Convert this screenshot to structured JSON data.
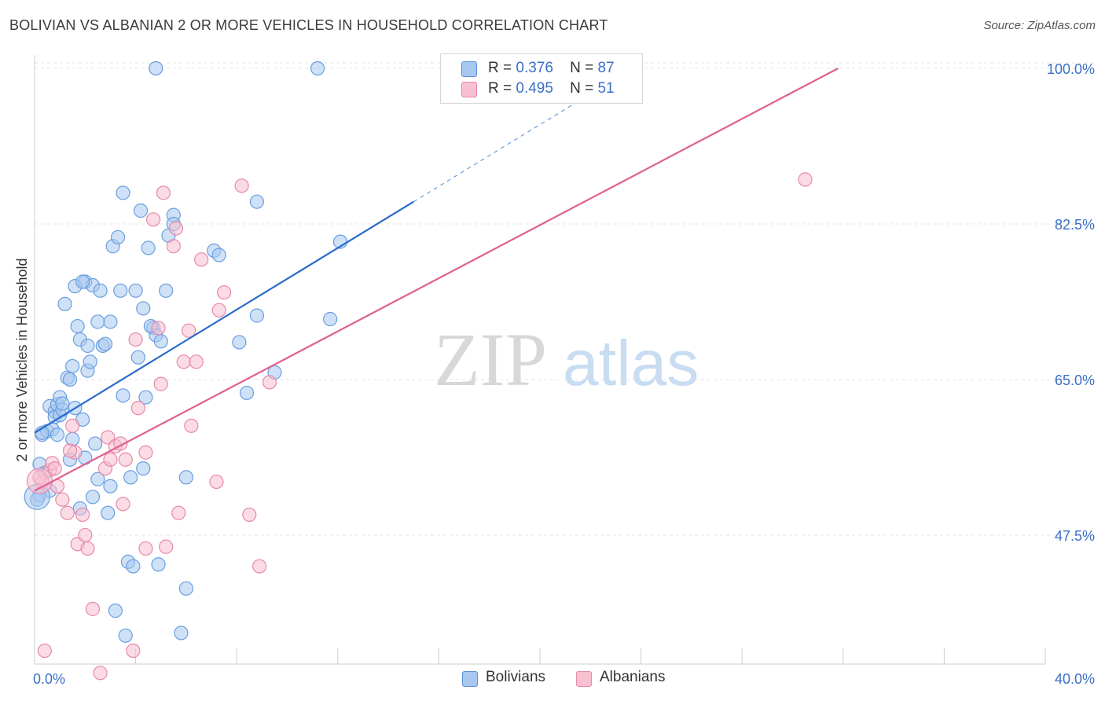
{
  "title": "BOLIVIAN VS ALBANIAN 2 OR MORE VEHICLES IN HOUSEHOLD CORRELATION CHART",
  "source": "Source: ZipAtlas.com",
  "watermark": {
    "zip": "ZIP",
    "atlas": "atlas"
  },
  "legend": {
    "r_label": "R =",
    "n_label": "N =",
    "rows": [
      {
        "r": "0.376",
        "n": "87",
        "color": "#a8c8f0",
        "border": "#5a8fd8"
      },
      {
        "r": "0.495",
        "n": "51",
        "color": "#f8c0d0",
        "border": "#e888a8"
      }
    ]
  },
  "bottom_legend": [
    {
      "label": "Bolivians",
      "color": "#a8c8f0",
      "border": "#5a8fd8"
    },
    {
      "label": "Albanians",
      "color": "#f8c0d0",
      "border": "#e888a8"
    }
  ],
  "chart_data": {
    "type": "scatter",
    "title": "BOLIVIAN VS ALBANIAN 2 OR MORE VEHICLES IN HOUSEHOLD CORRELATION CHART",
    "xlabel": "",
    "ylabel": "2 or more Vehicles in Household",
    "xlim": [
      0,
      40
    ],
    "ylim": [
      33,
      101.5
    ],
    "x_tick_labels": [
      "0.0%",
      "40.0%"
    ],
    "y_ticks": [
      47.5,
      65.0,
      82.5,
      100.0
    ],
    "y_tick_labels": [
      "47.5%",
      "65.0%",
      "82.5%",
      "100.0%"
    ],
    "grid": true,
    "legend_position": "top-center",
    "series": [
      {
        "name": "Bolivians",
        "color": "#6a9ee0",
        "fill": "#a8c8f0",
        "trend": {
          "x0": 0,
          "y0": 59.0,
          "x1": 15.0,
          "y1": 85.0,
          "dash_to_x": 22.5,
          "dash_to_y": 98.0,
          "color": "#2a6ccc"
        },
        "points": [
          [
            0.2,
            55.5
          ],
          [
            0.2,
            52.0
          ],
          [
            0.3,
            58.8
          ],
          [
            0.4,
            54.5
          ],
          [
            0.5,
            59.2
          ],
          [
            0.6,
            52.5
          ],
          [
            0.6,
            62.0
          ],
          [
            0.7,
            59.4
          ],
          [
            0.8,
            61.4
          ],
          [
            0.8,
            60.8
          ],
          [
            0.9,
            58.8
          ],
          [
            0.9,
            62.2
          ],
          [
            1.0,
            61.0
          ],
          [
            1.0,
            63.0
          ],
          [
            1.1,
            61.6
          ],
          [
            1.2,
            73.5
          ],
          [
            1.3,
            65.2
          ],
          [
            1.4,
            65.0
          ],
          [
            1.4,
            56.0
          ],
          [
            1.5,
            58.3
          ],
          [
            1.5,
            66.5
          ],
          [
            1.6,
            61.8
          ],
          [
            1.6,
            75.5
          ],
          [
            1.7,
            71.0
          ],
          [
            1.8,
            69.5
          ],
          [
            1.8,
            50.5
          ],
          [
            1.9,
            60.5
          ],
          [
            2.0,
            56.2
          ],
          [
            2.0,
            76.0
          ],
          [
            2.1,
            66.0
          ],
          [
            2.2,
            67.0
          ],
          [
            2.3,
            75.6
          ],
          [
            2.3,
            51.8
          ],
          [
            2.4,
            57.8
          ],
          [
            2.5,
            53.8
          ],
          [
            2.5,
            71.5
          ],
          [
            2.6,
            75.0
          ],
          [
            2.7,
            68.8
          ],
          [
            2.8,
            69.0
          ],
          [
            2.9,
            50.0
          ],
          [
            3.0,
            53.0
          ],
          [
            3.0,
            71.5
          ],
          [
            3.1,
            80.0
          ],
          [
            3.2,
            39.0
          ],
          [
            3.3,
            81.0
          ],
          [
            3.4,
            75.0
          ],
          [
            3.5,
            63.2
          ],
          [
            3.5,
            86.0
          ],
          [
            3.6,
            36.2
          ],
          [
            3.7,
            44.5
          ],
          [
            3.8,
            54.0
          ],
          [
            3.9,
            44.0
          ],
          [
            4.0,
            75.0
          ],
          [
            4.1,
            67.5
          ],
          [
            4.2,
            84.0
          ],
          [
            4.3,
            55.0
          ],
          [
            4.3,
            73.0
          ],
          [
            4.4,
            63.0
          ],
          [
            4.5,
            79.8
          ],
          [
            4.7,
            70.8
          ],
          [
            4.8,
            100.0
          ],
          [
            4.8,
            70.0
          ],
          [
            4.9,
            44.2
          ],
          [
            5.0,
            69.3
          ],
          [
            5.2,
            75.0
          ],
          [
            5.3,
            81.2
          ],
          [
            5.5,
            83.5
          ],
          [
            5.5,
            82.5
          ],
          [
            5.8,
            36.5
          ],
          [
            6.0,
            54.0
          ],
          [
            6.0,
            41.5
          ],
          [
            7.1,
            79.5
          ],
          [
            7.3,
            79.0
          ],
          [
            8.1,
            69.2
          ],
          [
            8.4,
            63.5
          ],
          [
            8.8,
            85.0
          ],
          [
            8.8,
            72.2
          ],
          [
            9.5,
            65.8
          ],
          [
            11.2,
            100.0
          ],
          [
            11.7,
            71.8
          ],
          [
            12.1,
            80.5
          ],
          [
            0.1,
            51.5
          ],
          [
            0.3,
            59.0
          ],
          [
            1.1,
            62.3
          ],
          [
            2.1,
            68.8
          ],
          [
            4.6,
            71.0
          ],
          [
            1.9,
            76.0
          ]
        ],
        "big_points": [
          [
            0.1,
            51.8
          ]
        ]
      },
      {
        "name": "Albanians",
        "color": "#e888a8",
        "fill": "#f8c0d0",
        "trend": {
          "x0": 0,
          "y0": 52.5,
          "x1": 31.8,
          "y1": 100.0,
          "color": "#e06090"
        },
        "points": [
          [
            0.3,
            53.5
          ],
          [
            0.4,
            34.5
          ],
          [
            0.6,
            54.8
          ],
          [
            0.7,
            55.6
          ],
          [
            0.8,
            55.0
          ],
          [
            0.9,
            53.0
          ],
          [
            1.1,
            51.5
          ],
          [
            1.3,
            50.0
          ],
          [
            1.5,
            59.8
          ],
          [
            1.6,
            56.8
          ],
          [
            1.7,
            46.5
          ],
          [
            1.9,
            49.8
          ],
          [
            2.0,
            47.5
          ],
          [
            2.1,
            46.0
          ],
          [
            2.3,
            39.2
          ],
          [
            2.6,
            32.0
          ],
          [
            2.8,
            55.0
          ],
          [
            2.9,
            58.5
          ],
          [
            3.0,
            56.0
          ],
          [
            3.2,
            57.5
          ],
          [
            3.4,
            57.8
          ],
          [
            3.5,
            51.0
          ],
          [
            3.6,
            56.0
          ],
          [
            3.9,
            34.5
          ],
          [
            4.0,
            69.5
          ],
          [
            4.1,
            61.8
          ],
          [
            4.4,
            46.0
          ],
          [
            4.4,
            56.8
          ],
          [
            4.7,
            83.0
          ],
          [
            4.9,
            70.8
          ],
          [
            5.0,
            64.5
          ],
          [
            5.1,
            86.0
          ],
          [
            5.2,
            46.2
          ],
          [
            5.5,
            80.0
          ],
          [
            5.6,
            82.0
          ],
          [
            5.7,
            50.0
          ],
          [
            5.9,
            67.0
          ],
          [
            6.1,
            70.5
          ],
          [
            6.2,
            59.8
          ],
          [
            6.4,
            67.0
          ],
          [
            6.6,
            78.5
          ],
          [
            7.2,
            53.5
          ],
          [
            7.3,
            72.8
          ],
          [
            7.5,
            74.8
          ],
          [
            8.2,
            86.8
          ],
          [
            8.5,
            49.8
          ],
          [
            8.9,
            44.0
          ],
          [
            9.3,
            64.7
          ],
          [
            30.5,
            87.5
          ],
          [
            0.2,
            54.0
          ],
          [
            1.4,
            57.0
          ]
        ],
        "big_points": [
          [
            0.2,
            53.6
          ]
        ]
      }
    ]
  }
}
